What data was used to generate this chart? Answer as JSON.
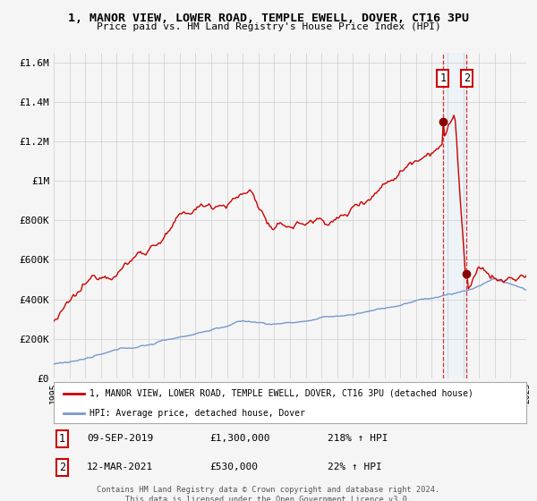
{
  "title": "1, MANOR VIEW, LOWER ROAD, TEMPLE EWELL, DOVER, CT16 3PU",
  "subtitle": "Price paid vs. HM Land Registry's House Price Index (HPI)",
  "red_label": "1, MANOR VIEW, LOWER ROAD, TEMPLE EWELL, DOVER, CT16 3PU (detached house)",
  "blue_label": "HPI: Average price, detached house, Dover",
  "sale1_date": "09-SEP-2019",
  "sale1_price": 1300000,
  "sale1_pct": "218%",
  "sale2_date": "12-MAR-2021",
  "sale2_price": 530000,
  "sale2_pct": "22%",
  "footnote": "Contains HM Land Registry data © Crown copyright and database right 2024.\nThis data is licensed under the Open Government Licence v3.0.",
  "ylim": [
    0,
    1650000
  ],
  "yticks": [
    0,
    200000,
    400000,
    600000,
    800000,
    1000000,
    1200000,
    1400000,
    1600000
  ],
  "red_color": "#cc0000",
  "blue_color": "#7799cc",
  "highlight_color": "#ddeeff",
  "bg_color": "#f5f5f5",
  "grid_color": "#cccccc"
}
